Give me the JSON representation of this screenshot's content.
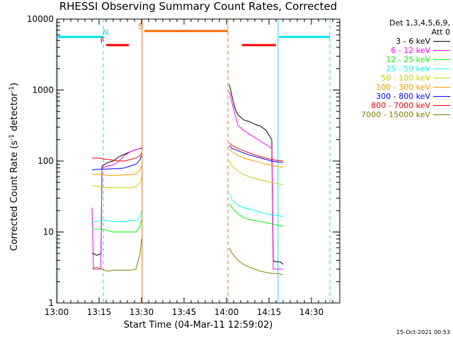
{
  "chart_data": {
    "type": "line",
    "title": "RHESSI Observing Summary Count Rates, Corrected",
    "xlabel": "Start Time (04-Mar-11 12:59:02)",
    "ylabel": "Corrected Count Rate (s",
    "ylabel_sup1": "-1",
    "ylabel_mid": " detector",
    "ylabel_sup2": "-1",
    "ylabel_end": ")",
    "x_unit": "minutes since 13:00",
    "xlim": [
      0,
      100
    ],
    "ylim": [
      1,
      10000
    ],
    "yscale": "log",
    "x_ticks": [
      {
        "v": 0,
        "label": "13:00"
      },
      {
        "v": 15,
        "label": "13:15"
      },
      {
        "v": 30,
        "label": "13:30"
      },
      {
        "v": 45,
        "label": "13:45"
      },
      {
        "v": 60,
        "label": "14:00"
      },
      {
        "v": 75,
        "label": "14:15"
      },
      {
        "v": 90,
        "label": "14:30"
      }
    ],
    "y_ticks": [
      {
        "v": 1,
        "label": "1"
      },
      {
        "v": 10,
        "label": "10"
      },
      {
        "v": 100,
        "label": "100"
      },
      {
        "v": 1000,
        "label": "1000"
      },
      {
        "v": 10000,
        "label": "10000"
      }
    ],
    "legend_header": [
      "Det 1,3,4,5,6,9,",
      "Att 0"
    ],
    "legend_placement": "outside-right",
    "series": [
      {
        "name": "3 - 6 keV",
        "color": "#000000",
        "segments": [
          [
            [
              12.5,
              5
            ],
            [
              13,
              5
            ],
            [
              14,
              4.7
            ],
            [
              15,
              4.8
            ],
            [
              15.7,
              5
            ],
            [
              16,
              85
            ],
            [
              18,
              95
            ],
            [
              20,
              100
            ],
            [
              22,
              115
            ],
            [
              24,
              125
            ],
            [
              26,
              135
            ],
            [
              28,
              145
            ],
            [
              29.5,
              150
            ],
            [
              30,
              150
            ]
          ],
          [
            [
              61,
              1200
            ],
            [
              62,
              800
            ],
            [
              63,
              550
            ],
            [
              64,
              450
            ],
            [
              66,
              380
            ],
            [
              68,
              360
            ],
            [
              70,
              330
            ],
            [
              72,
              310
            ],
            [
              74,
              270
            ],
            [
              75,
              230
            ],
            [
              76,
              200
            ],
            [
              76.5,
              4
            ],
            [
              77,
              3.8
            ],
            [
              79,
              3.8
            ],
            [
              80,
              3.5
            ]
          ]
        ]
      },
      {
        "name": "6 - 12 keV",
        "color": "#ff00ff",
        "segments": [
          [
            [
              12.5,
              22
            ],
            [
              13,
              3
            ],
            [
              15.6,
              3
            ],
            [
              16,
              80
            ],
            [
              18,
              85
            ],
            [
              20,
              88
            ],
            [
              22,
              100
            ],
            [
              24,
              120
            ],
            [
              26,
              135
            ],
            [
              28,
              145
            ],
            [
              29.5,
              150
            ],
            [
              30,
              155
            ]
          ],
          [
            [
              61,
              950
            ],
            [
              62,
              650
            ],
            [
              63,
              450
            ],
            [
              64,
              320
            ],
            [
              66,
              270
            ],
            [
              68,
              240
            ],
            [
              70,
              215
            ],
            [
              72,
              190
            ],
            [
              74,
              170
            ],
            [
              76,
              150
            ],
            [
              76.5,
              3
            ],
            [
              80,
              3
            ]
          ]
        ]
      },
      {
        "name": "12 - 25 keV",
        "color": "#00ff00",
        "segments": [
          [
            [
              12.5,
              11
            ],
            [
              14,
              11
            ],
            [
              16,
              11
            ],
            [
              18,
              10.5
            ],
            [
              20,
              10
            ],
            [
              22,
              10
            ],
            [
              24,
              10
            ],
            [
              26,
              10
            ],
            [
              28,
              10
            ],
            [
              29.5,
              12
            ],
            [
              30,
              15
            ]
          ],
          [
            [
              61,
              25
            ],
            [
              62,
              22
            ],
            [
              64,
              18
            ],
            [
              66,
              16
            ],
            [
              68,
              15
            ],
            [
              70,
              14.5
            ],
            [
              72,
              14
            ],
            [
              74,
              13.5
            ],
            [
              76,
              13
            ],
            [
              78,
              12.5
            ],
            [
              80,
              12
            ]
          ]
        ]
      },
      {
        "name": "25 - 50 keV",
        "color": "#00ffff",
        "segments": [
          [
            [
              12.5,
              14
            ],
            [
              14,
              14
            ],
            [
              16,
              14.5
            ],
            [
              18,
              14.5
            ],
            [
              20,
              14
            ],
            [
              22,
              14
            ],
            [
              24,
              14
            ],
            [
              26,
              14.5
            ],
            [
              28,
              14.5
            ],
            [
              29.5,
              16
            ],
            [
              30,
              20
            ]
          ],
          [
            [
              61,
              35
            ],
            [
              62,
              28
            ],
            [
              64,
              24
            ],
            [
              66,
              22
            ],
            [
              68,
              21
            ],
            [
              70,
              20
            ],
            [
              72,
              19
            ],
            [
              74,
              18
            ],
            [
              76,
              17.5
            ],
            [
              78,
              17
            ],
            [
              80,
              16.5
            ]
          ]
        ]
      },
      {
        "name": "50 - 100 keV",
        "color": "#cccc00",
        "segments": [
          [
            [
              12.5,
              45
            ],
            [
              14,
              44
            ],
            [
              16,
              43
            ],
            [
              18,
              42
            ],
            [
              20,
              42
            ],
            [
              22,
              42
            ],
            [
              24,
              42
            ],
            [
              26,
              42
            ],
            [
              28,
              43
            ],
            [
              29.5,
              50
            ],
            [
              30,
              60
            ]
          ],
          [
            [
              61,
              100
            ],
            [
              62,
              85
            ],
            [
              64,
              72
            ],
            [
              66,
              65
            ],
            [
              68,
              60
            ],
            [
              70,
              57
            ],
            [
              72,
              54
            ],
            [
              74,
              52
            ],
            [
              76,
              50
            ],
            [
              78,
              48
            ],
            [
              80,
              46
            ]
          ]
        ]
      },
      {
        "name": "100 - 300 keV",
        "color": "#ff9900",
        "segments": [
          [
            [
              12.5,
              65
            ],
            [
              14,
              65
            ],
            [
              16,
              64
            ],
            [
              18,
              63
            ],
            [
              20,
              63
            ],
            [
              22,
              63
            ],
            [
              24,
              64
            ],
            [
              26,
              64
            ],
            [
              28,
              66
            ],
            [
              29.5,
              75
            ],
            [
              30,
              85
            ]
          ],
          [
            [
              61,
              150
            ],
            [
              62,
              135
            ],
            [
              64,
              120
            ],
            [
              66,
              110
            ],
            [
              68,
              105
            ],
            [
              70,
              100
            ],
            [
              72,
              95
            ],
            [
              74,
              90
            ],
            [
              76,
              87
            ],
            [
              78,
              84
            ],
            [
              80,
              82
            ]
          ]
        ]
      },
      {
        "name": "300 - 800 keV",
        "color": "#0000ff",
        "segments": [
          [
            [
              12.5,
              75
            ],
            [
              14,
              76
            ],
            [
              16,
              77
            ],
            [
              18,
              77
            ],
            [
              20,
              78
            ],
            [
              22,
              78
            ],
            [
              24,
              80
            ],
            [
              26,
              85
            ],
            [
              28,
              90
            ],
            [
              29.5,
              105
            ],
            [
              30,
              120
            ]
          ],
          [
            [
              61,
              165
            ],
            [
              62,
              150
            ],
            [
              64,
              140
            ],
            [
              66,
              130
            ],
            [
              68,
              122
            ],
            [
              70,
              116
            ],
            [
              72,
              110
            ],
            [
              74,
              105
            ],
            [
              76,
              100
            ],
            [
              78,
              97
            ],
            [
              80,
              95
            ]
          ]
        ]
      },
      {
        "name": "800 - 7000 keV",
        "color": "#ff0000",
        "segments": [
          [
            [
              12.5,
              110
            ],
            [
              14,
              110
            ],
            [
              16,
              108
            ],
            [
              18,
              105
            ],
            [
              20,
              103
            ],
            [
              22,
              100
            ],
            [
              24,
              100
            ],
            [
              26,
              105
            ],
            [
              28,
              110
            ],
            [
              29.5,
              120
            ],
            [
              30,
              130
            ]
          ],
          [
            [
              61,
              180
            ],
            [
              62,
              165
            ],
            [
              64,
              150
            ],
            [
              66,
              140
            ],
            [
              68,
              130
            ],
            [
              70,
              122
            ],
            [
              72,
              115
            ],
            [
              74,
              110
            ],
            [
              76,
              105
            ],
            [
              78,
              102
            ],
            [
              80,
              100
            ]
          ]
        ]
      },
      {
        "name": "7000 - 15000 keV",
        "color": "#808000",
        "segments": [
          [
            [
              12.5,
              3
            ],
            [
              14,
              3.2
            ],
            [
              16,
              3
            ],
            [
              18,
              2.8
            ],
            [
              20,
              2.9
            ],
            [
              22,
              2.9
            ],
            [
              24,
              2.9
            ],
            [
              26,
              2.9
            ],
            [
              28,
              3
            ],
            [
              29.5,
              5
            ],
            [
              30,
              8
            ]
          ],
          [
            [
              61,
              6
            ],
            [
              62,
              5
            ],
            [
              64,
              4
            ],
            [
              66,
              3.5
            ],
            [
              68,
              3.2
            ],
            [
              70,
              3
            ],
            [
              72,
              2.8
            ],
            [
              74,
              2.7
            ],
            [
              76,
              2.6
            ],
            [
              78,
              2.6
            ],
            [
              80,
              2.5
            ]
          ]
        ]
      }
    ],
    "flag_bars": [
      {
        "label": "",
        "color": "#00e5ee",
        "x0": 0.5,
        "x1": 16.5,
        "y": 5600
      },
      {
        "label": "N",
        "color": "#00e5ee",
        "x0": 16.8,
        "x1": 17.8,
        "y": 5600,
        "label_only": true
      },
      {
        "label": "F",
        "color": "#ff0000",
        "x0": 17.5,
        "x1": 25.5,
        "y": 4300
      },
      {
        "label": "S",
        "color": "#ff6600",
        "x0": 31,
        "x1": 60.5,
        "y": 6800
      },
      {
        "label": "",
        "color": "#ff0000",
        "x0": 65.5,
        "x1": 77.5,
        "y": 4300
      },
      {
        "label": "",
        "color": "#00e5ee",
        "x0": 78.5,
        "x1": 96.5,
        "y": 5600
      }
    ],
    "vlines": [
      {
        "x": 0.4,
        "color": "#00e5ee",
        "style": "solid"
      },
      {
        "x": 16.5,
        "color": "#00e5ee",
        "style": "dashed"
      },
      {
        "x": 30.2,
        "color": "#ff6600",
        "style": "solid"
      },
      {
        "x": 60.5,
        "color": "#ff6600",
        "style": "dashed"
      },
      {
        "x": 78.2,
        "color": "#00e5ee",
        "style": "solid"
      },
      {
        "x": 96.5,
        "color": "#00e5ee",
        "style": "dashed"
      }
    ],
    "timestamp": "15-Oct-2021 00:53",
    "grid": false
  }
}
